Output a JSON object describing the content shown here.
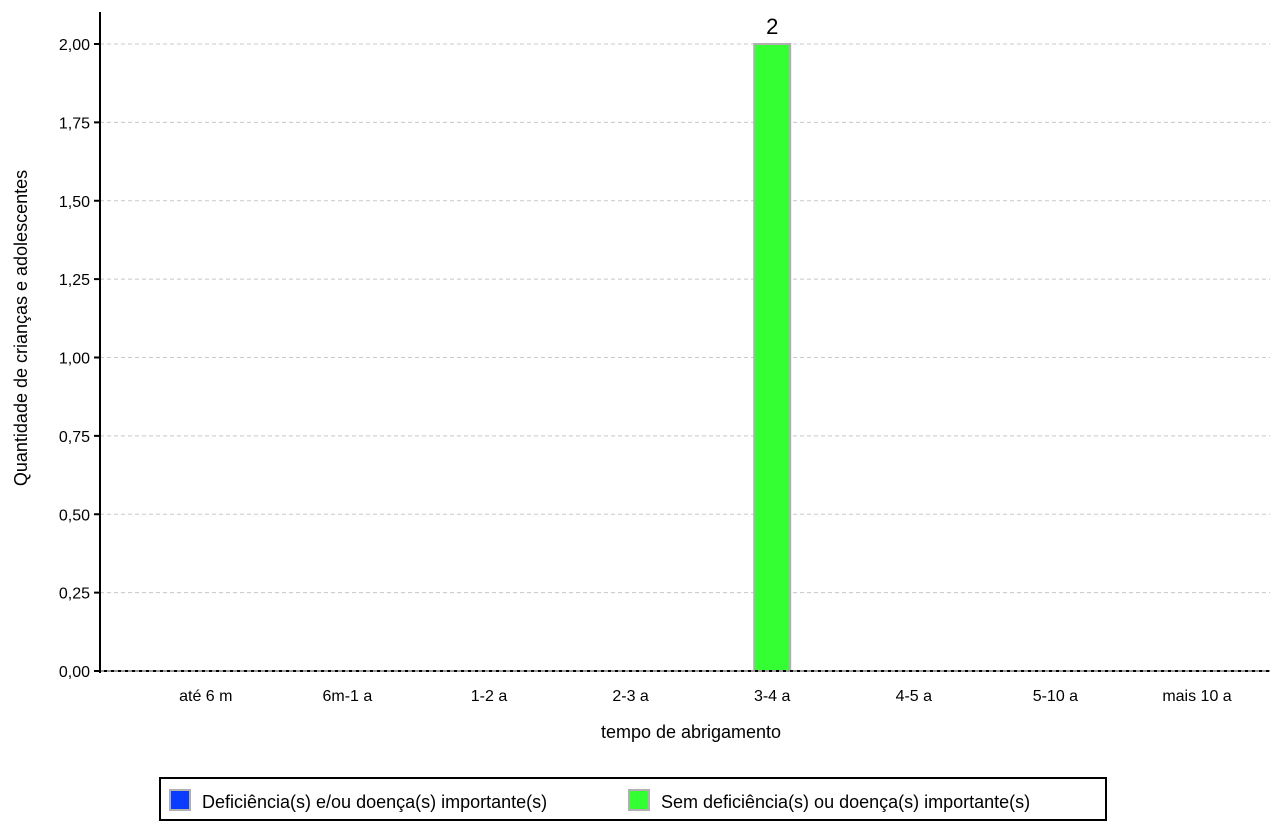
{
  "chart_data": {
    "type": "bar",
    "title": "",
    "xlabel": "tempo de abrigamento",
    "ylabel": "Quantidade de crianças e adolescentes",
    "categories": [
      "até 6 m",
      "6m-1 a",
      "1-2 a",
      "2-3 a",
      "3-4 a",
      "4-5 a",
      "5-10 a",
      "mais 10 a"
    ],
    "series": [
      {
        "name": "Deficiência(s) e/ou doença(s) importante(s)",
        "color": "#0a3cff",
        "values": [
          0,
          0,
          0,
          0,
          0,
          0,
          0,
          0
        ]
      },
      {
        "name": "Sem deficiência(s) ou doença(s) importante(s)",
        "color": "#33ff33",
        "values": [
          0,
          0,
          0,
          0,
          2,
          0,
          0,
          0
        ]
      }
    ],
    "data_labels": [
      {
        "category_index": 4,
        "series_index": 1,
        "text": "2"
      }
    ],
    "ylim": [
      0,
      2
    ],
    "yticks": [
      "0,00",
      "0,25",
      "0,50",
      "0,75",
      "1,00",
      "1,25",
      "1,50",
      "1,75",
      "2,00"
    ],
    "grid": true,
    "legend_position": "bottom"
  }
}
